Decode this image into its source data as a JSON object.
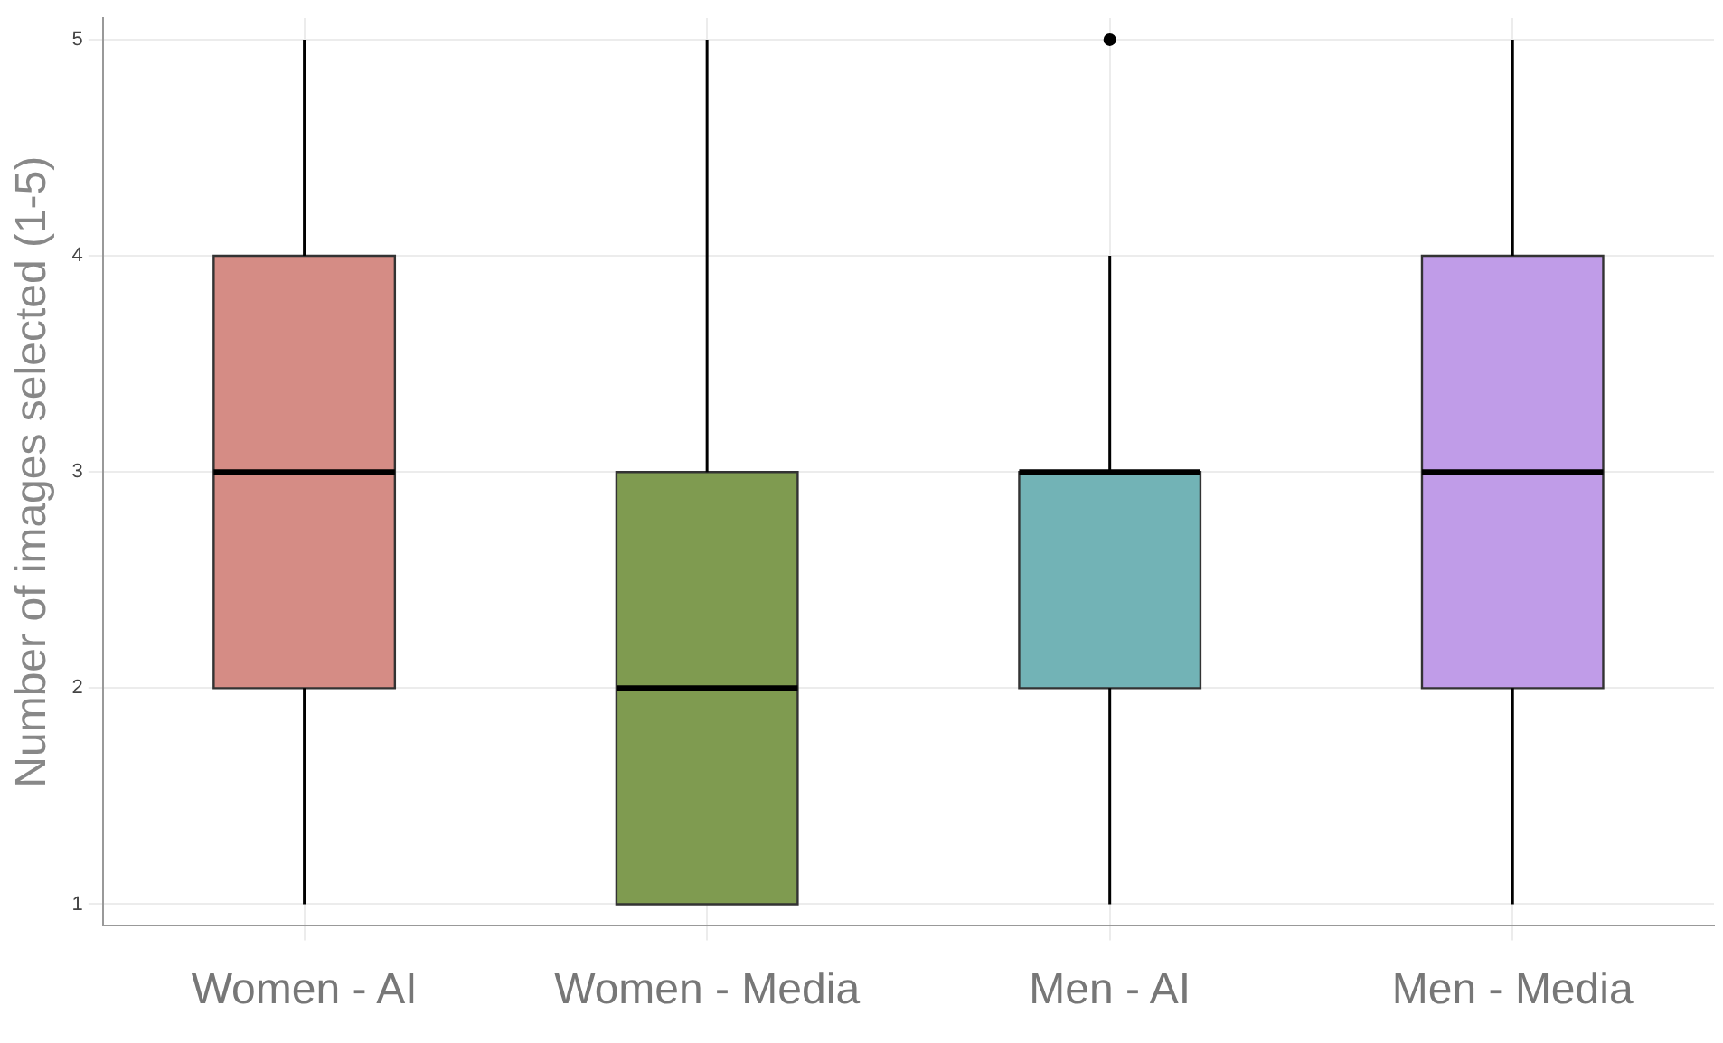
{
  "chart_data": {
    "type": "box",
    "ylabel": "Number of images selected (1-5)",
    "categories": [
      "Women - AI",
      "Women - Media",
      "Men - AI",
      "Men - Media"
    ],
    "colors": [
      "#d58c85",
      "#7f9b50",
      "#72b3b6",
      "#c09ce8"
    ],
    "boxes": [
      {
        "low": 1,
        "q1": 2,
        "median": 3,
        "q3": 4,
        "high": 5
      },
      {
        "low": 1,
        "q1": 1,
        "median": 2,
        "q3": 3,
        "high": 5
      },
      {
        "low": 1,
        "q1": 2,
        "median": 3,
        "q3": 3,
        "high": 4,
        "outliers": [
          5
        ]
      },
      {
        "low": 1,
        "q1": 2,
        "median": 3,
        "q3": 4,
        "high": 5
      }
    ],
    "ylim": [
      0.9,
      5.1
    ],
    "yticks": [
      1,
      2,
      3,
      4,
      5
    ],
    "grid": true,
    "legend": false
  }
}
